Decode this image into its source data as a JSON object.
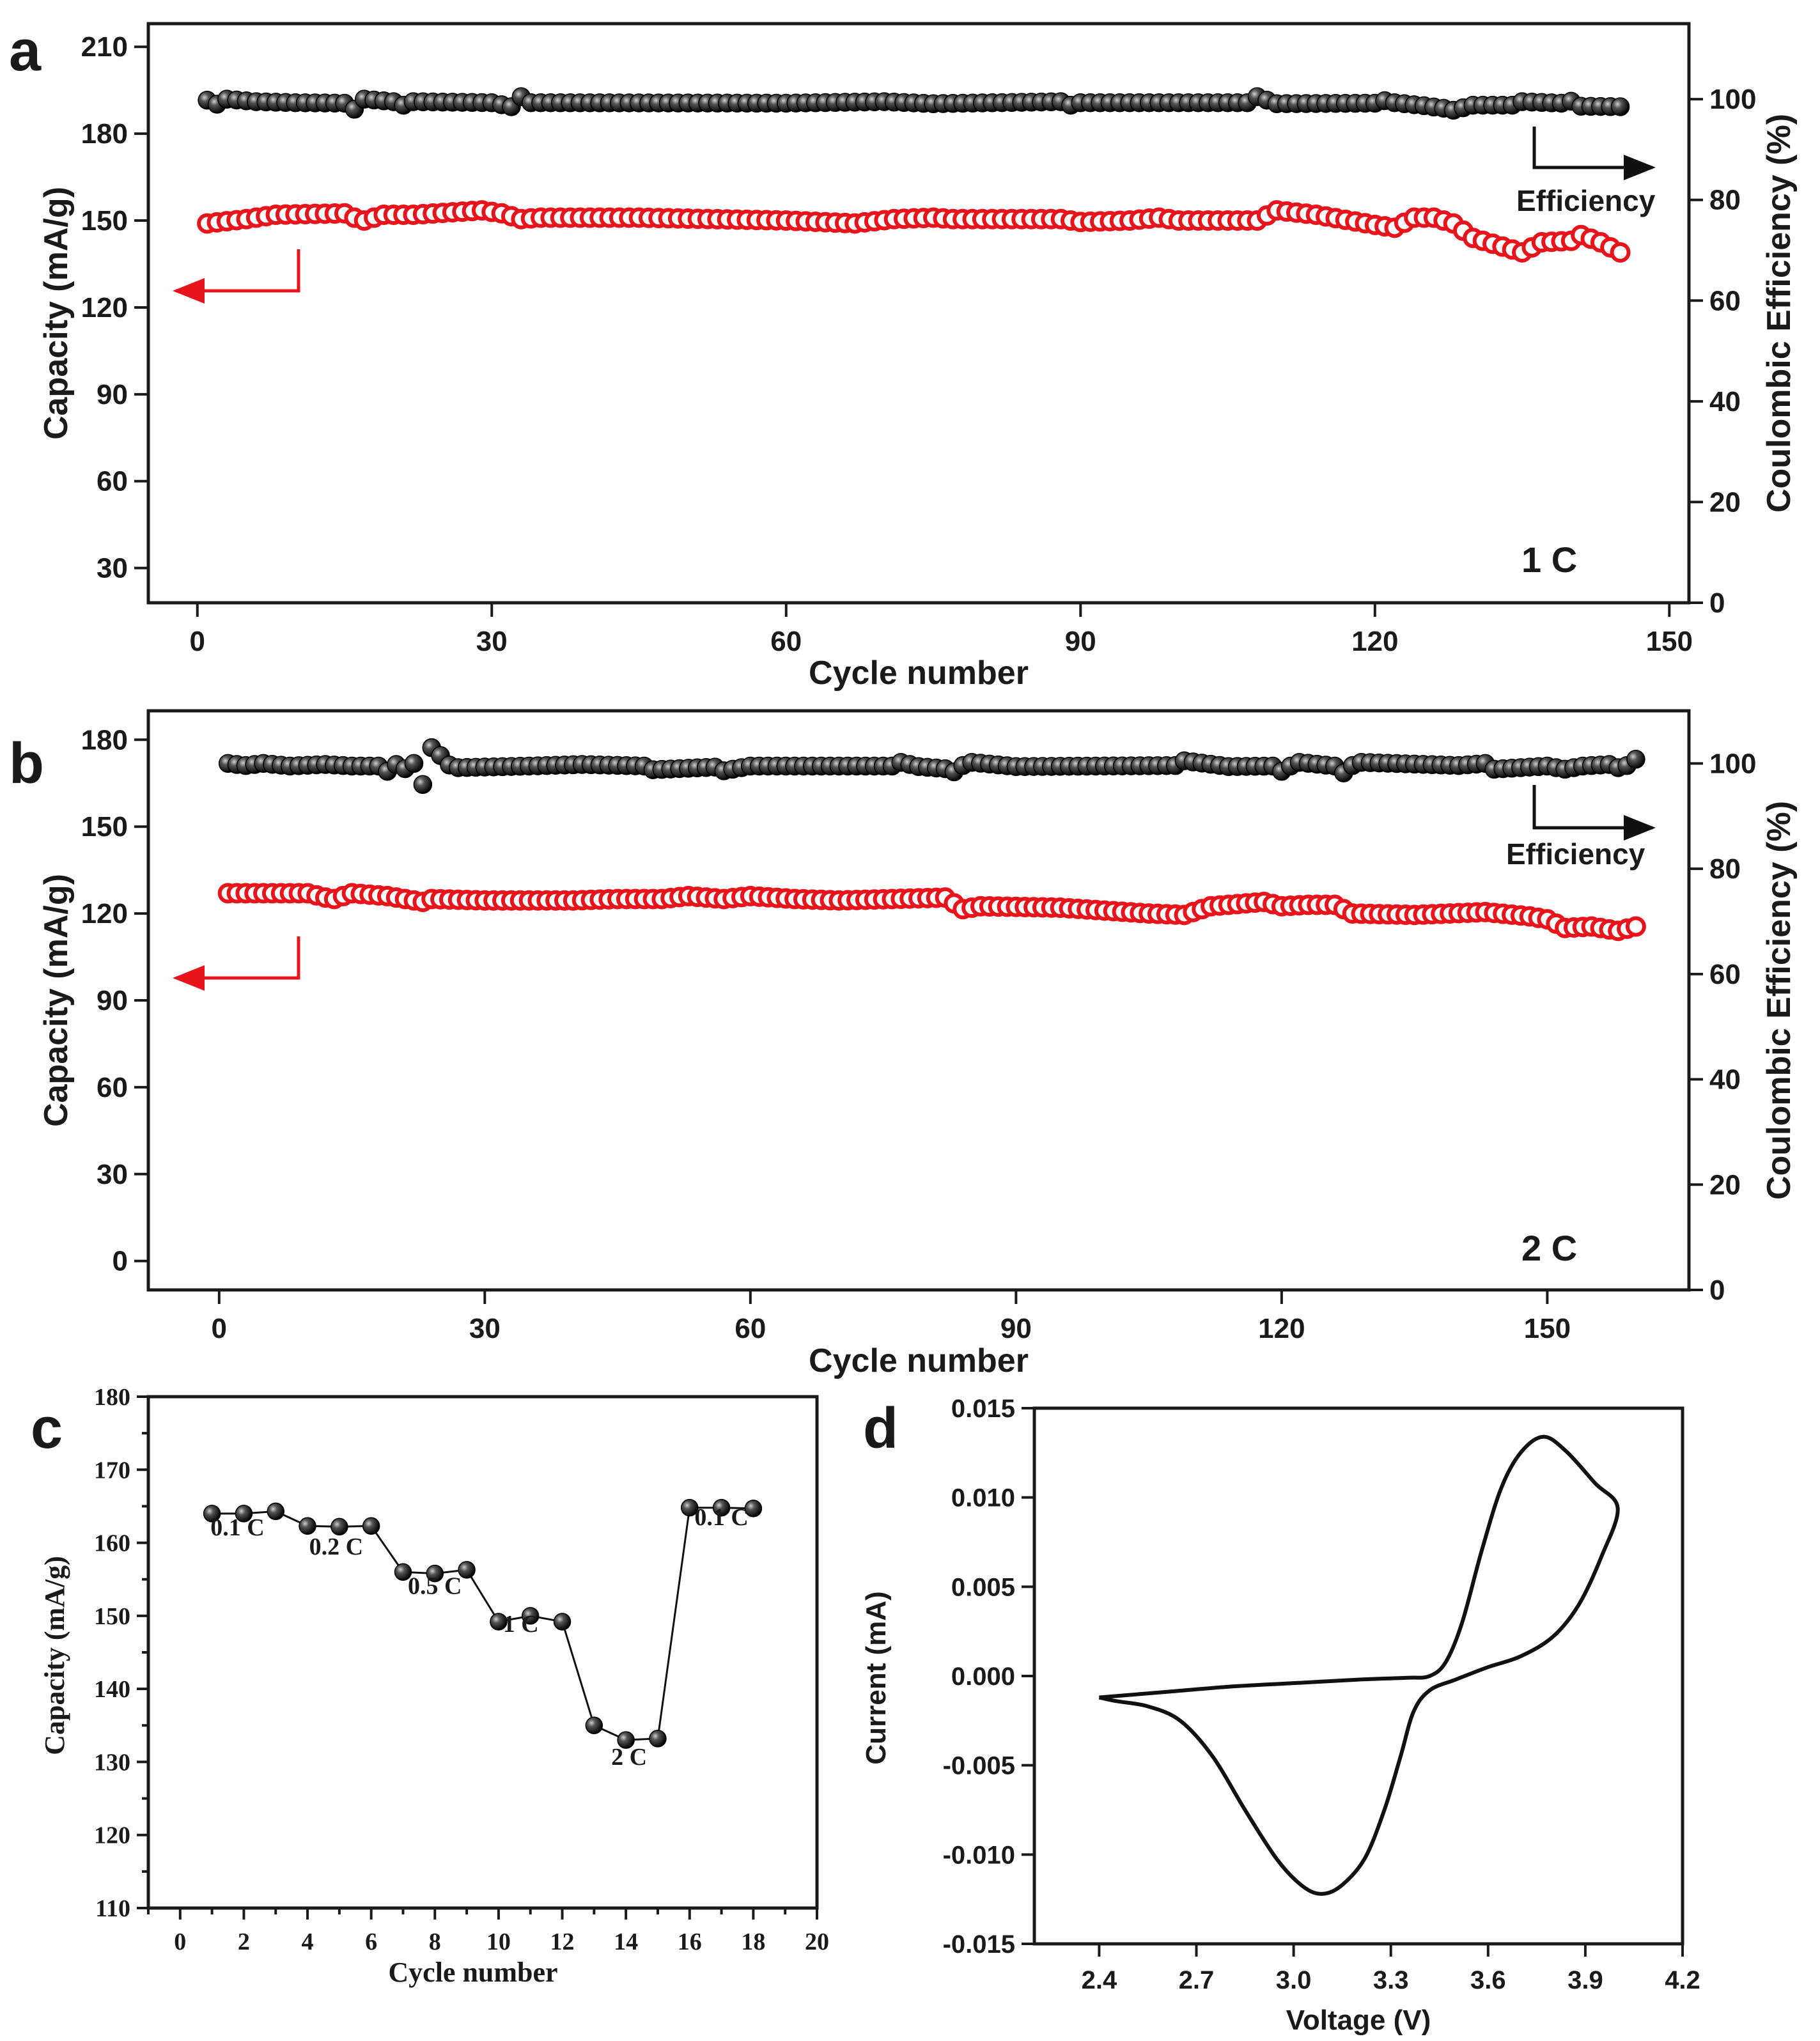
{
  "chart_data": [
    {
      "panel": "a",
      "type": "scatter",
      "xlabel": "Cycle number",
      "ylabel": "Capacity (mA/g)",
      "y2label": "Coulombic Efficiency (%)",
      "rate_label": "1 C",
      "arrow_capacity_label": "",
      "arrow_efficiency_label": "Efficiency",
      "xlim": [
        -5,
        152
      ],
      "ylim": [
        18,
        218
      ],
      "y2lim": [
        0,
        115
      ],
      "xticks": [
        0,
        30,
        60,
        90,
        120,
        150
      ],
      "yticks": [
        30,
        60,
        90,
        120,
        150,
        180,
        210
      ],
      "y2ticks": [
        0,
        20,
        40,
        60,
        80,
        100
      ],
      "cycles": 145,
      "series": [
        {
          "name": "Capacity",
          "axis": "left",
          "color": "#e8141c",
          "fill": "#ffffff",
          "points": [
            [
              1,
              149
            ],
            [
              5,
              150.5
            ],
            [
              8,
              152
            ],
            [
              15,
              152.5
            ],
            [
              16,
              151
            ],
            [
              17,
              150
            ],
            [
              19,
              152
            ],
            [
              22,
              152
            ],
            [
              29,
              153.5
            ],
            [
              31,
              152.5
            ],
            [
              33,
              150.5
            ],
            [
              35,
              151
            ],
            [
              45,
              151
            ],
            [
              60,
              150
            ],
            [
              67,
              149
            ],
            [
              71,
              150.5
            ],
            [
              75,
              151
            ],
            [
              77,
              150.5
            ],
            [
              88,
              150.5
            ],
            [
              90,
              149.5
            ],
            [
              95,
              150
            ],
            [
              98,
              151
            ],
            [
              100,
              150
            ],
            [
              108,
              150
            ],
            [
              110,
              153.5
            ],
            [
              114,
              152
            ],
            [
              120,
              148.5
            ],
            [
              122,
              147.5
            ],
            [
              124,
              151
            ],
            [
              126,
              151
            ],
            [
              128,
              149
            ],
            [
              130,
              144
            ],
            [
              133,
              141
            ],
            [
              135,
              139
            ],
            [
              137,
              142.5
            ],
            [
              140,
              143
            ],
            [
              141,
              145
            ],
            [
              143,
              142.5
            ],
            [
              145,
              139
            ]
          ]
        },
        {
          "name": "Coulombic Efficiency",
          "axis": "right",
          "color": "#111111",
          "points": [
            [
              1,
              99.8
            ],
            [
              2,
              99
            ],
            [
              3,
              100
            ],
            [
              6,
              99.5
            ],
            [
              10,
              99.3
            ],
            [
              15,
              99.2
            ],
            [
              16,
              98
            ],
            [
              17,
              100
            ],
            [
              20,
              99.5
            ],
            [
              21,
              98.8
            ],
            [
              22,
              99.5
            ],
            [
              30,
              99.3
            ],
            [
              32,
              98.5
            ],
            [
              33,
              100.5
            ],
            [
              34,
              99.3
            ],
            [
              60,
              99.2
            ],
            [
              70,
              99.5
            ],
            [
              75,
              99.1
            ],
            [
              88,
              99.5
            ],
            [
              89,
              98.8
            ],
            [
              90,
              99.3
            ],
            [
              107,
              99.3
            ],
            [
              108,
              100.5
            ],
            [
              110,
              99.1
            ],
            [
              120,
              99.2
            ],
            [
              121,
              99.7
            ],
            [
              122,
              99.3
            ],
            [
              125,
              98.7
            ],
            [
              127,
              98.2
            ],
            [
              128,
              97.8
            ],
            [
              130,
              98.8
            ],
            [
              134,
              98.8
            ],
            [
              135,
              99.5
            ],
            [
              139,
              99.2
            ],
            [
              140,
              99.6
            ],
            [
              141,
              98.6
            ],
            [
              145,
              98.5
            ]
          ]
        }
      ]
    },
    {
      "panel": "b",
      "type": "scatter",
      "xlabel": "Cycle number",
      "ylabel": "Capacity (mA/g)",
      "y2label": "Coulombic Efficiency (%)",
      "rate_label": "2 C",
      "arrow_efficiency_label": "Efficiency",
      "xlim": [
        -8,
        166
      ],
      "ylim": [
        -10,
        190
      ],
      "y2lim": [
        0,
        110
      ],
      "xticks": [
        0,
        30,
        60,
        90,
        120,
        150
      ],
      "yticks": [
        0,
        30,
        60,
        90,
        120,
        150,
        180
      ],
      "y2ticks": [
        0,
        20,
        40,
        60,
        80,
        100
      ],
      "cycles": 160,
      "series": [
        {
          "name": "Capacity",
          "axis": "left",
          "color": "#e8141c",
          "fill": "#ffffff",
          "points": [
            [
              1,
              127
            ],
            [
              10,
              127
            ],
            [
              12,
              125.5
            ],
            [
              13,
              125
            ],
            [
              15,
              127
            ],
            [
              19,
              126
            ],
            [
              21,
              125
            ],
            [
              23,
              124
            ],
            [
              24,
              125
            ],
            [
              30,
              124.5
            ],
            [
              40,
              124.5
            ],
            [
              45,
              125
            ],
            [
              50,
              125
            ],
            [
              53,
              126
            ],
            [
              57,
              125
            ],
            [
              60,
              126
            ],
            [
              65,
              125
            ],
            [
              70,
              124.5
            ],
            [
              76,
              125
            ],
            [
              82,
              125.5
            ],
            [
              84,
              121.5
            ],
            [
              86,
              122.5
            ],
            [
              95,
              122
            ],
            [
              100,
              121
            ],
            [
              105,
              120
            ],
            [
              109,
              119.5
            ],
            [
              112,
              122.5
            ],
            [
              118,
              124
            ],
            [
              120,
              122.5
            ],
            [
              123,
              123
            ],
            [
              126,
              123
            ],
            [
              128,
              120
            ],
            [
              135,
              119.5
            ],
            [
              143,
              120.5
            ],
            [
              148,
              119
            ],
            [
              150,
              118
            ],
            [
              152,
              115
            ],
            [
              155,
              115.5
            ],
            [
              158,
              114
            ],
            [
              160,
              115.5
            ]
          ]
        },
        {
          "name": "Coulombic Efficiency",
          "axis": "right",
          "color": "#111111",
          "points": [
            [
              1,
              100
            ],
            [
              3,
              99.6
            ],
            [
              5,
              100
            ],
            [
              8,
              99.5
            ],
            [
              12,
              99.8
            ],
            [
              15,
              99.5
            ],
            [
              18,
              99.5
            ],
            [
              19,
              98.5
            ],
            [
              20,
              99.8
            ],
            [
              21,
              99
            ],
            [
              22,
              100
            ],
            [
              23,
              96
            ],
            [
              24,
              103
            ],
            [
              25,
              101.5
            ],
            [
              26,
              99.7
            ],
            [
              27,
              99.2
            ],
            [
              35,
              99.5
            ],
            [
              41,
              99.8
            ],
            [
              48,
              99.5
            ],
            [
              49,
              98.8
            ],
            [
              56,
              99.3
            ],
            [
              57,
              98.6
            ],
            [
              60,
              99.5
            ],
            [
              76,
              99.5
            ],
            [
              77,
              100.2
            ],
            [
              79,
              99.4
            ],
            [
              82,
              99
            ],
            [
              83,
              98.4
            ],
            [
              84,
              99.6
            ],
            [
              85,
              100.2
            ],
            [
              90,
              99.4
            ],
            [
              108,
              99.6
            ],
            [
              109,
              100.5
            ],
            [
              114,
              99.4
            ],
            [
              119,
              99.5
            ],
            [
              120,
              98.5
            ],
            [
              121,
              99.5
            ],
            [
              122,
              100.2
            ],
            [
              126,
              99.5
            ],
            [
              127,
              98.2
            ],
            [
              128,
              99.6
            ],
            [
              129,
              100.2
            ],
            [
              140,
              99.6
            ],
            [
              143,
              100
            ],
            [
              144,
              98.9
            ],
            [
              150,
              99.5
            ],
            [
              152,
              98.9
            ],
            [
              154,
              99.5
            ],
            [
              157,
              99.8
            ],
            [
              158,
              99.2
            ],
            [
              159,
              99.6
            ],
            [
              160,
              100.8
            ]
          ]
        }
      ]
    },
    {
      "panel": "c",
      "type": "line",
      "xlabel": "Cycle number",
      "ylabel": "Capacity (mA/g)",
      "xlim": [
        -1,
        20
      ],
      "ylim": [
        110,
        180
      ],
      "xticks": [
        0,
        2,
        4,
        6,
        8,
        10,
        12,
        14,
        16,
        18,
        20
      ],
      "yticks": [
        110,
        120,
        130,
        140,
        150,
        160,
        170,
        180
      ],
      "x": [
        1,
        2,
        3,
        4,
        5,
        6,
        7,
        8,
        9,
        10,
        11,
        12,
        13,
        14,
        15,
        16,
        17,
        18
      ],
      "values": [
        164,
        164,
        164.3,
        162.3,
        162.2,
        162.3,
        156,
        155.8,
        156.3,
        149.2,
        150,
        149.2,
        135,
        133,
        133.2,
        164.8,
        164.8,
        164.7
      ],
      "annotations": [
        {
          "text": "0.1 C",
          "x": 1.8,
          "y": 161
        },
        {
          "text": "0.2 C",
          "x": 4.9,
          "y": 158.4
        },
        {
          "text": "0.5 C",
          "x": 8.0,
          "y": 153
        },
        {
          "text": "1 C",
          "x": 10.7,
          "y": 147.8
        },
        {
          "text": "2 C",
          "x": 14.1,
          "y": 129.6
        },
        {
          "text": "0.1 C",
          "x": 17.0,
          "y": 162.4
        }
      ]
    },
    {
      "panel": "d",
      "type": "line",
      "xlabel": "Voltage (V)",
      "ylabel": "Current (mA)",
      "xlim": [
        2.2,
        4.2
      ],
      "ylim": [
        -0.015,
        0.015
      ],
      "xticks": [
        "2.4",
        "2.7",
        "3.0",
        "3.3",
        "3.6",
        "3.9",
        "4.2"
      ],
      "yticks": [
        "-0.015",
        "-0.010",
        "-0.005",
        "0.000",
        "0.005",
        "0.010",
        "0.015"
      ],
      "curve": [
        [
          2.4,
          -0.0012
        ],
        [
          2.6,
          -0.0009
        ],
        [
          2.8,
          -0.0006
        ],
        [
          3.0,
          -0.0004
        ],
        [
          3.2,
          -0.0002
        ],
        [
          3.35,
          -0.0001
        ],
        [
          3.42,
          0.0
        ],
        [
          3.47,
          0.0008
        ],
        [
          3.52,
          0.003
        ],
        [
          3.58,
          0.007
        ],
        [
          3.64,
          0.0105
        ],
        [
          3.7,
          0.0125
        ],
        [
          3.77,
          0.0134
        ],
        [
          3.84,
          0.0126
        ],
        [
          3.93,
          0.0108
        ],
        [
          4.0,
          0.0094
        ],
        [
          3.95,
          0.0067
        ],
        [
          3.88,
          0.004
        ],
        [
          3.8,
          0.0022
        ],
        [
          3.7,
          0.0011
        ],
        [
          3.6,
          0.0005
        ],
        [
          3.5,
          -0.0002
        ],
        [
          3.42,
          -0.0008
        ],
        [
          3.37,
          -0.002
        ],
        [
          3.33,
          -0.0045
        ],
        [
          3.28,
          -0.0075
        ],
        [
          3.22,
          -0.0102
        ],
        [
          3.15,
          -0.0117
        ],
        [
          3.09,
          -0.0122
        ],
        [
          3.03,
          -0.0118
        ],
        [
          2.95,
          -0.0103
        ],
        [
          2.85,
          -0.0075
        ],
        [
          2.75,
          -0.0045
        ],
        [
          2.65,
          -0.0025
        ],
        [
          2.55,
          -0.0017
        ],
        [
          2.45,
          -0.0014
        ],
        [
          2.4,
          -0.0012
        ]
      ]
    }
  ]
}
